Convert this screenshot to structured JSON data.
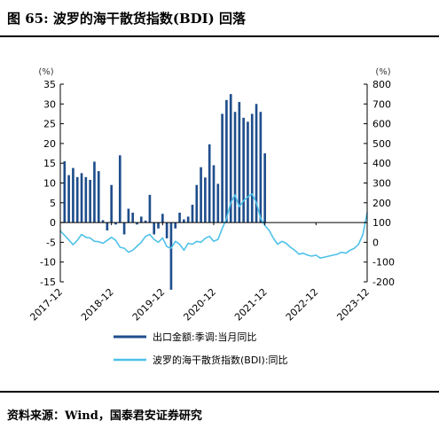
{
  "header": {
    "title": "图 65: 波罗的海干散货指数(BDI) 回落"
  },
  "footer": {
    "source": "资料来源：Wind，国泰君安证券研究"
  },
  "chart_data": {
    "type": "bar+line",
    "left_axis": {
      "unit": "(%)",
      "ylim": [
        -15,
        35
      ],
      "ticks": [
        -15,
        -10,
        -5,
        0,
        5,
        10,
        15,
        20,
        25,
        30,
        35
      ]
    },
    "right_axis": {
      "unit": "(%)",
      "ylim": [
        -200,
        800
      ],
      "ticks": [
        -200,
        -100,
        0,
        100,
        200,
        300,
        400,
        500,
        600,
        700,
        800
      ]
    },
    "x_ticks": [
      "2017-12",
      "2018-12",
      "2019-12",
      "2020-12",
      "2021-12",
      "2022-12",
      "2023-12"
    ],
    "x_range": [
      "2017-12",
      "2023-12"
    ],
    "legend": [
      "出口金额:季调:当月同比",
      "波罗的海干散货指数(BDI):同比"
    ],
    "series": [
      {
        "name": "出口金额:季调:当月同比",
        "axis": "left",
        "kind": "bar",
        "color": "#1f4e8c",
        "points": [
          [
            "2018-01",
            15.5
          ],
          [
            "2018-02",
            12.0
          ],
          [
            "2018-03",
            13.8
          ],
          [
            "2018-04",
            11.5
          ],
          [
            "2018-05",
            12.5
          ],
          [
            "2018-06",
            11.5
          ],
          [
            "2018-07",
            10.8
          ],
          [
            "2018-08",
            15.4
          ],
          [
            "2018-09",
            13.0
          ],
          [
            "2018-10",
            0.6
          ],
          [
            "2018-11",
            -2.0
          ],
          [
            "2018-12",
            9.5
          ],
          [
            "2019-01",
            -0.5
          ],
          [
            "2019-02",
            17.0
          ],
          [
            "2019-03",
            -3.0
          ],
          [
            "2019-04",
            3.5
          ],
          [
            "2019-05",
            2.5
          ],
          [
            "2019-06",
            -0.5
          ],
          [
            "2019-07",
            1.5
          ],
          [
            "2019-08",
            0.5
          ],
          [
            "2019-09",
            7.0
          ],
          [
            "2019-10",
            -3.0
          ],
          [
            "2019-11",
            -1.5
          ],
          [
            "2019-12",
            2.2
          ],
          [
            "2020-01",
            -4.0
          ],
          [
            "2020-02",
            -17.0
          ],
          [
            "2020-03",
            -1.5
          ],
          [
            "2020-04",
            2.5
          ],
          [
            "2020-05",
            0.8
          ],
          [
            "2020-06",
            1.5
          ],
          [
            "2020-07",
            4.5
          ],
          [
            "2020-08",
            9.5
          ],
          [
            "2020-09",
            14.0
          ],
          [
            "2020-10",
            11.4
          ],
          [
            "2020-11",
            19.8
          ],
          [
            "2020-12",
            14.5
          ],
          [
            "2021-01",
            9.8
          ],
          [
            "2021-02",
            27.5
          ],
          [
            "2021-03",
            31.0
          ],
          [
            "2021-04",
            32.5
          ],
          [
            "2021-05",
            28.0
          ],
          [
            "2021-06",
            30.5
          ],
          [
            "2021-07",
            26.5
          ],
          [
            "2021-08",
            25.5
          ],
          [
            "2021-09",
            27.5
          ],
          [
            "2021-10",
            30.0
          ],
          [
            "2021-11",
            28.0
          ],
          [
            "2021-12",
            17.5
          ]
        ]
      },
      {
        "name": "波罗的海干散货指数(BDI):同比",
        "axis": "right",
        "kind": "line",
        "color": "#4fc1e9",
        "points": [
          [
            "2017-12",
            58
          ],
          [
            "2018-01",
            35
          ],
          [
            "2018-02",
            12
          ],
          [
            "2018-03",
            -12
          ],
          [
            "2018-04",
            10
          ],
          [
            "2018-05",
            40
          ],
          [
            "2018-06",
            25
          ],
          [
            "2018-07",
            22
          ],
          [
            "2018-08",
            5
          ],
          [
            "2018-09",
            3
          ],
          [
            "2018-10",
            -5
          ],
          [
            "2018-11",
            10
          ],
          [
            "2018-12",
            25
          ],
          [
            "2019-01",
            10
          ],
          [
            "2019-02",
            -25
          ],
          [
            "2019-03",
            -30
          ],
          [
            "2019-04",
            -50
          ],
          [
            "2019-05",
            -40
          ],
          [
            "2019-06",
            -20
          ],
          [
            "2019-07",
            0
          ],
          [
            "2019-08",
            30
          ],
          [
            "2019-09",
            40
          ],
          [
            "2019-10",
            15
          ],
          [
            "2019-11",
            0
          ],
          [
            "2019-12",
            22
          ],
          [
            "2020-01",
            -22
          ],
          [
            "2020-02",
            -30
          ],
          [
            "2020-03",
            5
          ],
          [
            "2020-04",
            -10
          ],
          [
            "2020-05",
            -40
          ],
          [
            "2020-06",
            -5
          ],
          [
            "2020-07",
            -10
          ],
          [
            "2020-08",
            5
          ],
          [
            "2020-09",
            0
          ],
          [
            "2020-10",
            20
          ],
          [
            "2020-11",
            30
          ],
          [
            "2020-12",
            5
          ],
          [
            "2021-01",
            15
          ],
          [
            "2021-02",
            70
          ],
          [
            "2021-03",
            120
          ],
          [
            "2021-04",
            200
          ],
          [
            "2021-05",
            240
          ],
          [
            "2021-06",
            180
          ],
          [
            "2021-07",
            210
          ],
          [
            "2021-08",
            230
          ],
          [
            "2021-09",
            245
          ],
          [
            "2021-10",
            200
          ],
          [
            "2021-11",
            120
          ],
          [
            "2021-12",
            85
          ],
          [
            "2022-01",
            60
          ],
          [
            "2022-02",
            20
          ],
          [
            "2022-03",
            -10
          ],
          [
            "2022-04",
            5
          ],
          [
            "2022-05",
            -5
          ],
          [
            "2022-06",
            -25
          ],
          [
            "2022-07",
            -40
          ],
          [
            "2022-08",
            -60
          ],
          [
            "2022-09",
            -55
          ],
          [
            "2022-10",
            -65
          ],
          [
            "2022-11",
            -70
          ],
          [
            "2022-12",
            -65
          ],
          [
            "2023-01",
            -80
          ],
          [
            "2023-02",
            -75
          ],
          [
            "2023-03",
            -70
          ],
          [
            "2023-04",
            -65
          ],
          [
            "2023-05",
            -60
          ],
          [
            "2023-06",
            -50
          ],
          [
            "2023-07",
            -55
          ],
          [
            "2023-08",
            -40
          ],
          [
            "2023-09",
            -30
          ],
          [
            "2023-10",
            -10
          ],
          [
            "2023-11",
            40
          ],
          [
            "2023-12",
            150
          ]
        ]
      }
    ]
  }
}
